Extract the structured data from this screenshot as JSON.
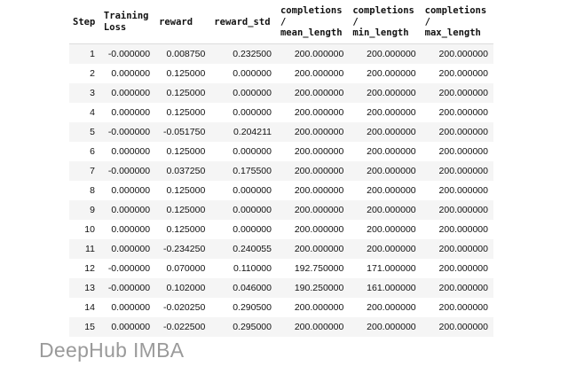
{
  "table": {
    "headers": [
      [
        "Step"
      ],
      [
        "Training",
        "Loss"
      ],
      [
        "reward"
      ],
      [
        "reward_std"
      ],
      [
        "completions",
        "/",
        "mean_length"
      ],
      [
        "completions",
        "/",
        "min_length"
      ],
      [
        "completions",
        "/",
        "max_length"
      ]
    ],
    "rows": [
      [
        "1",
        "-0.000000",
        "0.008750",
        "0.232500",
        "200.000000",
        "200.000000",
        "200.000000"
      ],
      [
        "2",
        "0.000000",
        "0.125000",
        "0.000000",
        "200.000000",
        "200.000000",
        "200.000000"
      ],
      [
        "3",
        "0.000000",
        "0.125000",
        "0.000000",
        "200.000000",
        "200.000000",
        "200.000000"
      ],
      [
        "4",
        "0.000000",
        "0.125000",
        "0.000000",
        "200.000000",
        "200.000000",
        "200.000000"
      ],
      [
        "5",
        "-0.000000",
        "-0.051750",
        "0.204211",
        "200.000000",
        "200.000000",
        "200.000000"
      ],
      [
        "6",
        "0.000000",
        "0.125000",
        "0.000000",
        "200.000000",
        "200.000000",
        "200.000000"
      ],
      [
        "7",
        "-0.000000",
        "0.037250",
        "0.175500",
        "200.000000",
        "200.000000",
        "200.000000"
      ],
      [
        "8",
        "0.000000",
        "0.125000",
        "0.000000",
        "200.000000",
        "200.000000",
        "200.000000"
      ],
      [
        "9",
        "0.000000",
        "0.125000",
        "0.000000",
        "200.000000",
        "200.000000",
        "200.000000"
      ],
      [
        "10",
        "0.000000",
        "0.125000",
        "0.000000",
        "200.000000",
        "200.000000",
        "200.000000"
      ],
      [
        "11",
        "0.000000",
        "-0.234250",
        "0.240055",
        "200.000000",
        "200.000000",
        "200.000000"
      ],
      [
        "12",
        "-0.000000",
        "0.070000",
        "0.110000",
        "192.750000",
        "171.000000",
        "200.000000"
      ],
      [
        "13",
        "-0.000000",
        "0.102000",
        "0.046000",
        "190.250000",
        "161.000000",
        "200.000000"
      ],
      [
        "14",
        "0.000000",
        "-0.020250",
        "0.290500",
        "200.000000",
        "200.000000",
        "200.000000"
      ],
      [
        "15",
        "0.000000",
        "-0.022500",
        "0.295000",
        "200.000000",
        "200.000000",
        "200.000000"
      ]
    ]
  },
  "watermark": "DeepHub IMBA"
}
